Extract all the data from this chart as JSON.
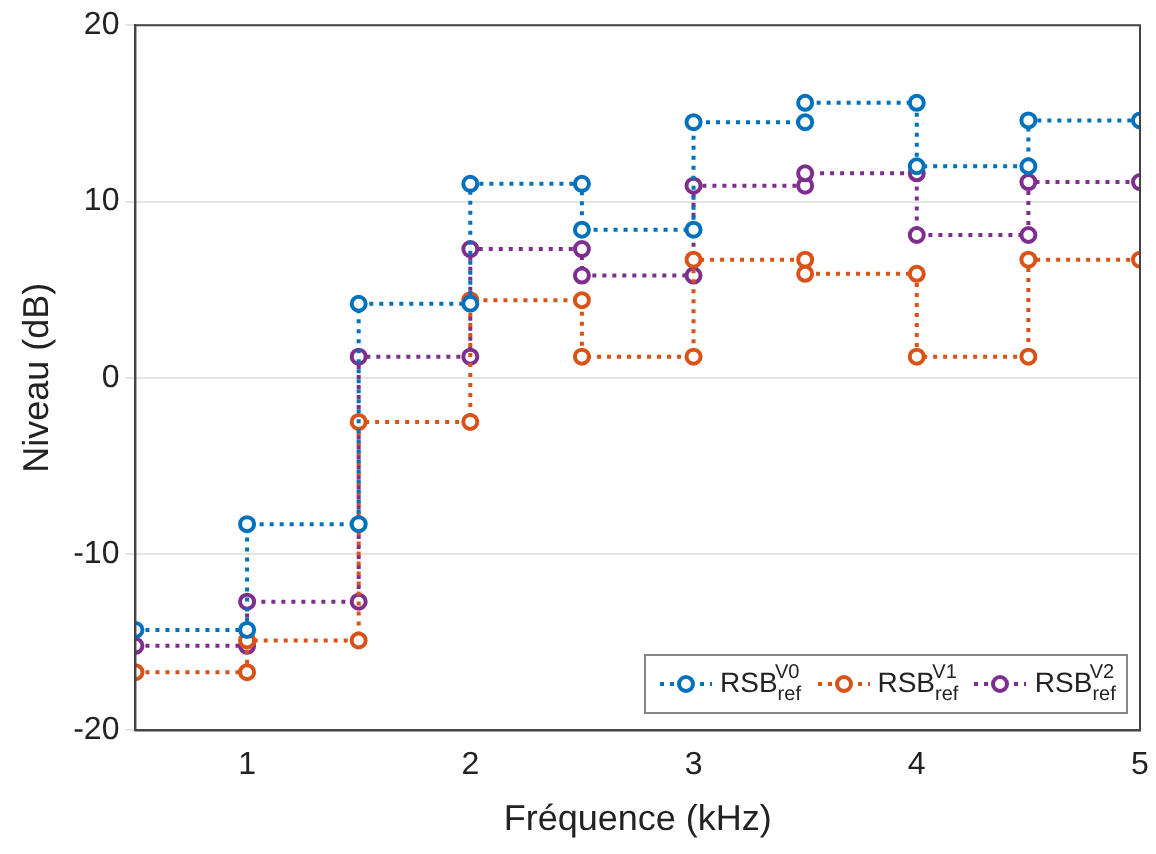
{
  "chart_data": {
    "type": "line",
    "xlabel": "Fréquence (kHz)",
    "ylabel": "Niveau (dB)",
    "xlim": [
      0.5,
      5
    ],
    "xticks": [
      1,
      2,
      3,
      4,
      5
    ],
    "ylim": [
      -20,
      20
    ],
    "yticks": [
      -20,
      -10,
      0,
      10,
      20
    ],
    "grid": "y",
    "legend": "bottom right",
    "marker": "circle",
    "line_style": "dotted",
    "series": [
      {
        "name": "RSB$_{ref}$$^{V0}$",
        "color": "#0072bd",
        "x": [
          0.5,
          1,
          1,
          1.5,
          1.5,
          2,
          2,
          2.5,
          2.5,
          3,
          3,
          3.5,
          3.5,
          4,
          4,
          4.5,
          4.5,
          5
        ],
        "values": [
          -14.3,
          -14.3,
          -8.3,
          -8.3,
          4.2,
          4.2,
          11,
          11,
          8.4,
          8.4,
          14.5,
          14.5,
          15.6,
          15.6,
          12,
          12,
          14.6,
          14.6
        ]
      },
      {
        "name": "RSB$_{ref}$$^{V1}$",
        "color": "#d95319",
        "x": [
          0.5,
          1,
          1,
          1.5,
          1.5,
          2,
          2,
          2.5,
          2.5,
          3,
          3,
          3.5,
          3.5,
          4,
          4,
          4.5,
          4.5,
          5
        ],
        "values": [
          -16.7,
          -16.7,
          -14.9,
          -14.9,
          -2.5,
          -2.5,
          4.4,
          4.4,
          1.2,
          1.2,
          6.7,
          6.7,
          5.9,
          5.9,
          1.2,
          1.2,
          6.7,
          6.7
        ]
      },
      {
        "name": "RSB$_{ref}$$^{V2}$",
        "color": "#7e2f8e",
        "x": [
          0.5,
          1,
          1,
          1.5,
          1.5,
          2,
          2,
          2.5,
          2.5,
          3,
          3,
          3.5,
          3.5,
          4,
          4,
          4.5,
          4.5,
          5
        ],
        "values": [
          -15.2,
          -15.2,
          -12.7,
          -12.7,
          1.2,
          1.2,
          7.3,
          7.3,
          5.8,
          5.8,
          10.9,
          10.9,
          11.6,
          11.6,
          8.1,
          8.1,
          11.1,
          11.1
        ]
      }
    ]
  }
}
